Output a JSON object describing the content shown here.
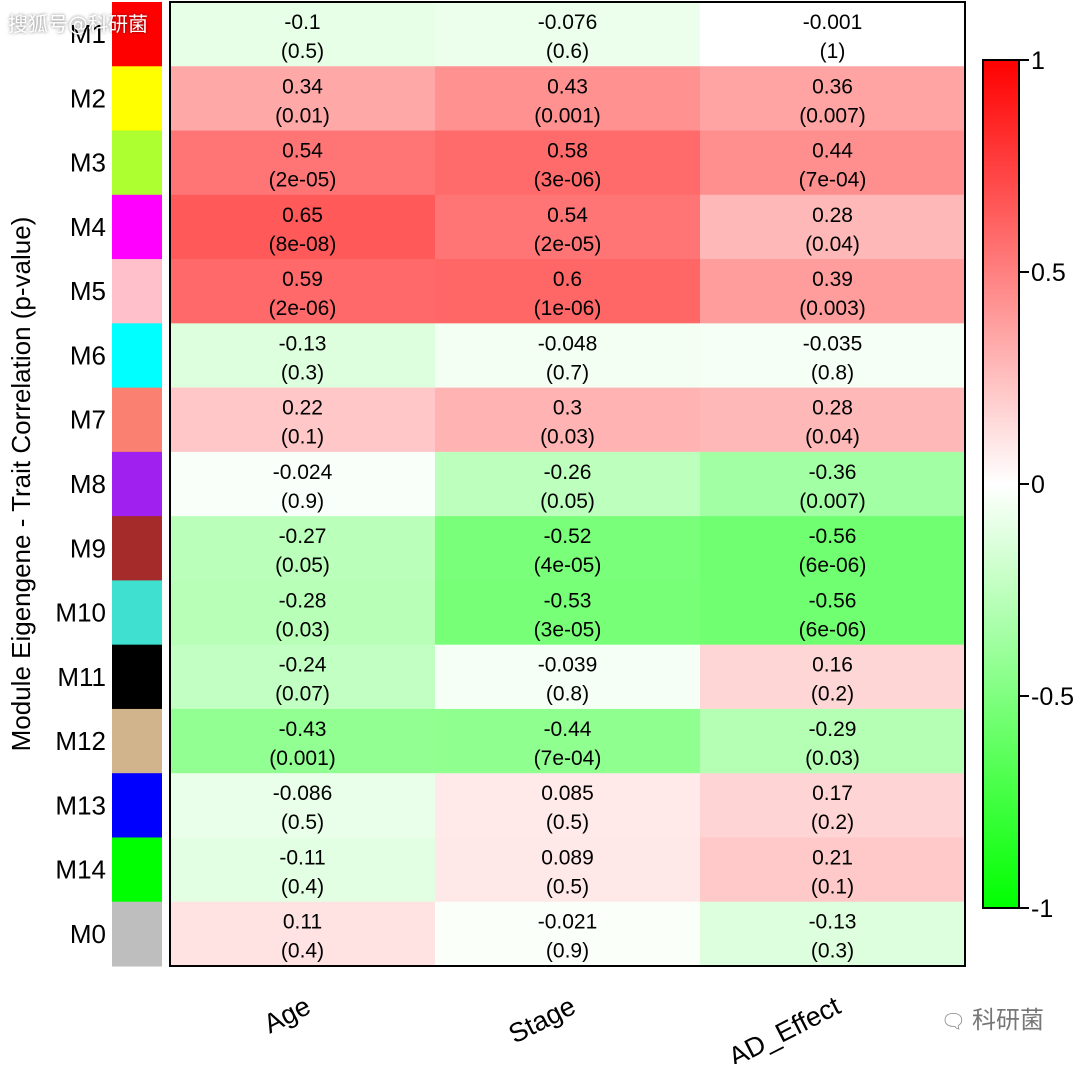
{
  "watermark": {
    "top_left": "搜狐号@科研菌",
    "bottom_right": "科研菌",
    "icon": "wechat-icon"
  },
  "chart_data": {
    "type": "heatmap",
    "ylabel": "Module Eigengene - Trait Correlation (p-value)",
    "xlabel": "",
    "columns": [
      "Age",
      "Stage",
      "AD_Effect"
    ],
    "rows": [
      "M1",
      "M2",
      "M3",
      "M4",
      "M5",
      "M6",
      "M7",
      "M8",
      "M9",
      "M10",
      "M11",
      "M12",
      "M13",
      "M14",
      "M0"
    ],
    "row_colors": [
      "#ff0000",
      "#ffff00",
      "#adff2f",
      "#ff00ff",
      "#ffc0cb",
      "#00ffff",
      "#fa8072",
      "#a020f0",
      "#a52a2a",
      "#40e0d0",
      "#000000",
      "#d2b48c",
      "#0000ff",
      "#00ff00",
      "#bebebe"
    ],
    "correlations": [
      [
        "-0.1",
        "-0.076",
        "-0.001"
      ],
      [
        "0.34",
        "0.43",
        "0.36"
      ],
      [
        "0.54",
        "0.58",
        "0.44"
      ],
      [
        "0.65",
        "0.54",
        "0.28"
      ],
      [
        "0.59",
        "0.6",
        "0.39"
      ],
      [
        "-0.13",
        "-0.048",
        "-0.035"
      ],
      [
        "0.22",
        "0.3",
        "0.28"
      ],
      [
        "-0.024",
        "-0.26",
        "-0.36"
      ],
      [
        "-0.27",
        "-0.52",
        "-0.56"
      ],
      [
        "-0.28",
        "-0.53",
        "-0.56"
      ],
      [
        "-0.24",
        "-0.039",
        "0.16"
      ],
      [
        "-0.43",
        "-0.44",
        "-0.29"
      ],
      [
        "-0.086",
        "0.085",
        "0.17"
      ],
      [
        "-0.11",
        "0.089",
        "0.21"
      ],
      [
        "0.11",
        "-0.021",
        "-0.13"
      ]
    ],
    "p_values": [
      [
        "(0.5)",
        "(0.6)",
        "(1)"
      ],
      [
        "(0.01)",
        "(0.001)",
        "(0.007)"
      ],
      [
        "(2e-05)",
        "(3e-06)",
        "(7e-04)"
      ],
      [
        "(8e-08)",
        "(2e-05)",
        "(0.04)"
      ],
      [
        "(2e-06)",
        "(1e-06)",
        "(0.003)"
      ],
      [
        "(0.3)",
        "(0.7)",
        "(0.8)"
      ],
      [
        "(0.1)",
        "(0.03)",
        "(0.04)"
      ],
      [
        "(0.9)",
        "(0.05)",
        "(0.007)"
      ],
      [
        "(0.05)",
        "(4e-05)",
        "(6e-06)"
      ],
      [
        "(0.03)",
        "(3e-05)",
        "(6e-06)"
      ],
      [
        "(0.07)",
        "(0.8)",
        "(0.2)"
      ],
      [
        "(0.001)",
        "(7e-04)",
        "(0.03)"
      ],
      [
        "(0.5)",
        "(0.5)",
        "(0.2)"
      ],
      [
        "(0.4)",
        "(0.5)",
        "(0.1)"
      ],
      [
        "(0.4)",
        "(0.9)",
        "(0.3)"
      ]
    ],
    "colorbar": {
      "range": [
        -1,
        1
      ],
      "ticks": [
        1,
        0.5,
        0,
        -0.5,
        -1
      ],
      "tick_labels": [
        "1",
        "0.5",
        "0",
        "-0.5",
        "-1"
      ],
      "colors": {
        "high": "#ff0000",
        "mid": "#ffffff",
        "low": "#00ff00"
      }
    }
  }
}
